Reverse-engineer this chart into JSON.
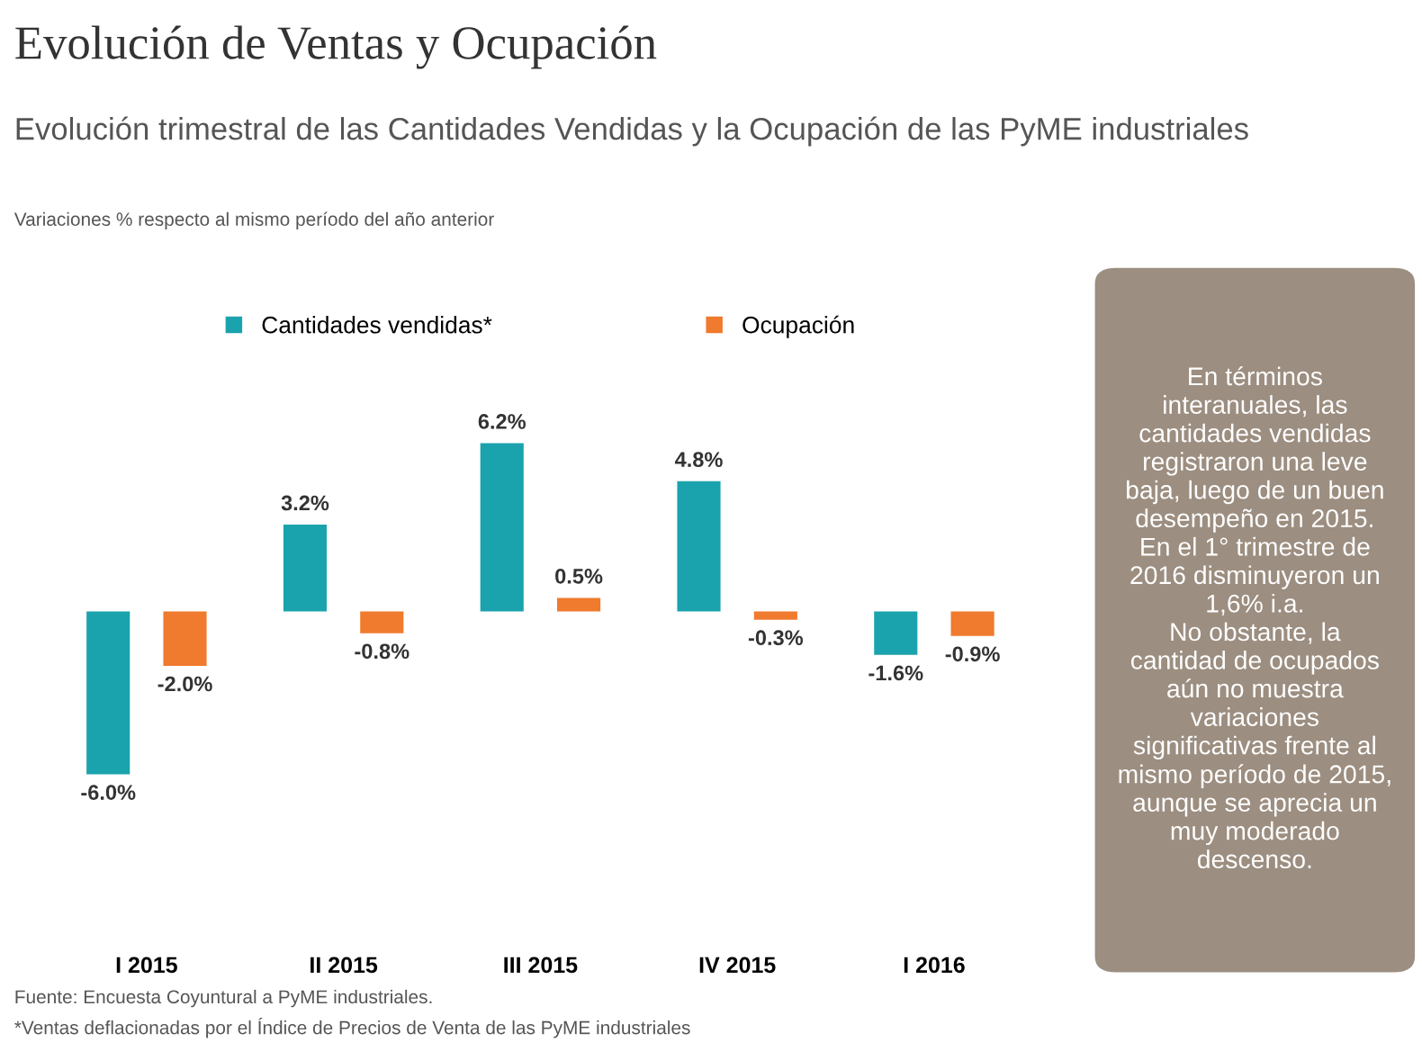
{
  "chart_data": {
    "type": "bar",
    "title": "Evolución de Ventas y Ocupación",
    "subtitle": "Evolución trimestral de las Cantidades Vendidas y la Ocupación de las PyME industriales",
    "categories": [
      "I 2015",
      "II 2015",
      "III 2015",
      "IV 2015",
      "I 2016"
    ],
    "series": [
      {
        "name": "Cantidades vendidas*",
        "color": "#1ba3ad",
        "values": [
          -6.0,
          3.2,
          6.2,
          4.8,
          -1.6
        ],
        "value_labels": [
          "-6.0%",
          "3.2%",
          "6.2%",
          "4.8%",
          "-1.6%"
        ]
      },
      {
        "name": "Ocupación",
        "color": "#f07a2e",
        "values": [
          -2.0,
          -0.8,
          0.5,
          -0.3,
          -0.9
        ],
        "value_labels": [
          "-2.0%",
          "-0.8%",
          "0.5%",
          "-0.3%",
          "-0.9%"
        ]
      }
    ],
    "legend": "top",
    "grid": false,
    "annotations": [
      "Variaciones % respecto al mismo período del año anterior",
      "Fuente: Encuesta Coyuntural a PyME industriales.",
      "*Ventas deflacionadas por el Índice de Precios de Venta de las PyME industriales",
      "En términos\ninteranuales, las\ncantidades vendidas\nregistraron una leve\nbaja, luego de un buen\ndesempeño en 2015.\nEn el 1° trimestre de\n2016 disminuyeron un\n1,6% i.a.\nNo obstante, la\ncantidad de ocupados\naún no muestra\nvariaciones\nsignificativas frente al\nmismo período de 2015,\naunque se aprecia un\nmuy moderado\ndescenso."
    ]
  }
}
